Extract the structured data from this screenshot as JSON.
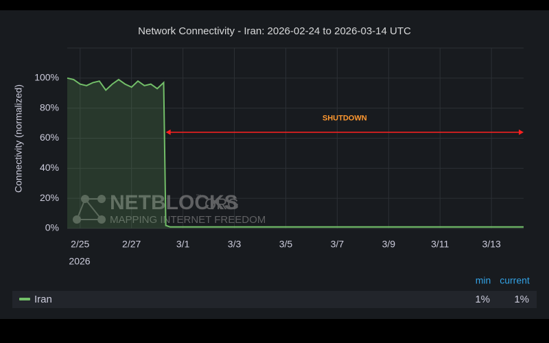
{
  "chart_data": {
    "type": "line",
    "title": "Network Connectivity - Iran: 2026-02-24 to 2026-03-14 UTC",
    "y_label": "Connectivity (normalized)",
    "x_year_label": "2026",
    "x": [
      "2026-02-24T12:00",
      "2026-02-24T18:00",
      "2026-02-25T00:00",
      "2026-02-25T06:00",
      "2026-02-25T12:00",
      "2026-02-25T18:00",
      "2026-02-26T00:00",
      "2026-02-26T06:00",
      "2026-02-26T12:00",
      "2026-02-26T18:00",
      "2026-02-27T00:00",
      "2026-02-27T06:00",
      "2026-02-27T12:00",
      "2026-02-27T18:00",
      "2026-02-28T00:00",
      "2026-02-28T06:00",
      "2026-02-28T08:00",
      "2026-02-28T12:00",
      "2026-03-01T00:00",
      "2026-03-02T00:00",
      "2026-03-03T00:00",
      "2026-03-04T00:00",
      "2026-03-05T00:00",
      "2026-03-06T00:00",
      "2026-03-07T00:00",
      "2026-03-08T00:00",
      "2026-03-09T00:00",
      "2026-03-10T00:00",
      "2026-03-11T00:00",
      "2026-03-12T00:00",
      "2026-03-13T00:00",
      "2026-03-14T06:00"
    ],
    "series": [
      {
        "name": "Iran",
        "color": "#73bf69",
        "values": [
          100,
          99,
          96,
          95,
          97,
          98,
          92,
          96,
          99,
          96,
          94,
          98,
          95,
          96,
          93,
          97,
          2,
          1,
          1,
          1,
          1,
          1,
          1,
          1,
          1,
          1,
          1,
          1,
          1,
          1,
          1,
          1
        ]
      }
    ],
    "xlim": [
      "2026-02-24T12:00",
      "2026-03-14T06:00"
    ],
    "xticks": [
      {
        "value": "2026-02-25T00:00",
        "label": "2/25"
      },
      {
        "value": "2026-02-27T00:00",
        "label": "2/27"
      },
      {
        "value": "2026-03-01T00:00",
        "label": "3/1"
      },
      {
        "value": "2026-03-03T00:00",
        "label": "3/3"
      },
      {
        "value": "2026-03-05T00:00",
        "label": "3/5"
      },
      {
        "value": "2026-03-07T00:00",
        "label": "3/7"
      },
      {
        "value": "2026-03-09T00:00",
        "label": "3/9"
      },
      {
        "value": "2026-03-11T00:00",
        "label": "3/11"
      },
      {
        "value": "2026-03-13T00:00",
        "label": "3/13"
      }
    ],
    "ylim": [
      0,
      120
    ],
    "yticks": [
      {
        "value": 0,
        "label": "0%"
      },
      {
        "value": 20,
        "label": "20%"
      },
      {
        "value": 40,
        "label": "40%"
      },
      {
        "value": 60,
        "label": "60%"
      },
      {
        "value": 80,
        "label": "80%"
      },
      {
        "value": 100,
        "label": "100%"
      }
    ],
    "grid": true,
    "annotation": {
      "text": "SHUTDOWN",
      "x_start": "2026-02-28T08:00",
      "x_end": "2026-03-14T06:00",
      "y": 64,
      "color": "#ff2020",
      "text_color": "#ff9830"
    },
    "watermark": {
      "title": "NETBLOCKS",
      "mark": "™",
      "suffix": ".ORG",
      "tagline": "MAPPING INTERNET FREEDOM"
    },
    "legend_stats": {
      "headers": [
        "min",
        "current"
      ],
      "values": [
        {
          "value": 1,
          "label": "1%"
        },
        {
          "value": 1,
          "label": "1%"
        }
      ]
    }
  }
}
